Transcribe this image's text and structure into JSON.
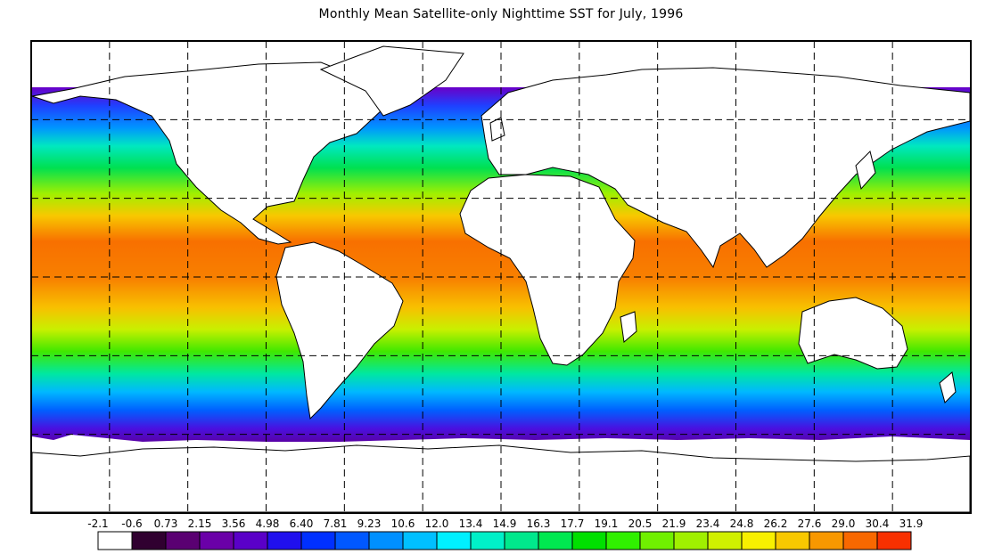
{
  "title": "Monthly Mean Satellite-only Nighttime SST for July, 1996",
  "colorbar": {
    "tick_labels": [
      "-2.1",
      "-0.6",
      "0.73",
      "2.15",
      "3.56",
      "4.98",
      "6.40",
      "7.81",
      "9.23",
      "10.6",
      "12.0",
      "13.4",
      "14.9",
      "16.3",
      "17.7",
      "19.1",
      "20.5",
      "21.9",
      "23.4",
      "24.8",
      "26.2",
      "27.6",
      "29.0",
      "30.4",
      "31.9"
    ],
    "colors": [
      "#ffffff",
      "#300030",
      "#5a0072",
      "#6a00a8",
      "#5a00c8",
      "#2010ee",
      "#0030ff",
      "#0058ff",
      "#0090ff",
      "#00c0ff",
      "#00f0ff",
      "#00f0c8",
      "#00e88c",
      "#00e850",
      "#00e000",
      "#30f000",
      "#70f000",
      "#a0f000",
      "#d0f000",
      "#f8f000",
      "#f8c800",
      "#f89800",
      "#f86800",
      "#f83000"
    ]
  },
  "grid": {
    "lon_lines_deg": [
      -150,
      -120,
      -90,
      -60,
      -30,
      0,
      30,
      60,
      90,
      120,
      150
    ],
    "lat_lines_deg": [
      60,
      30,
      0,
      -30,
      -60
    ]
  }
}
